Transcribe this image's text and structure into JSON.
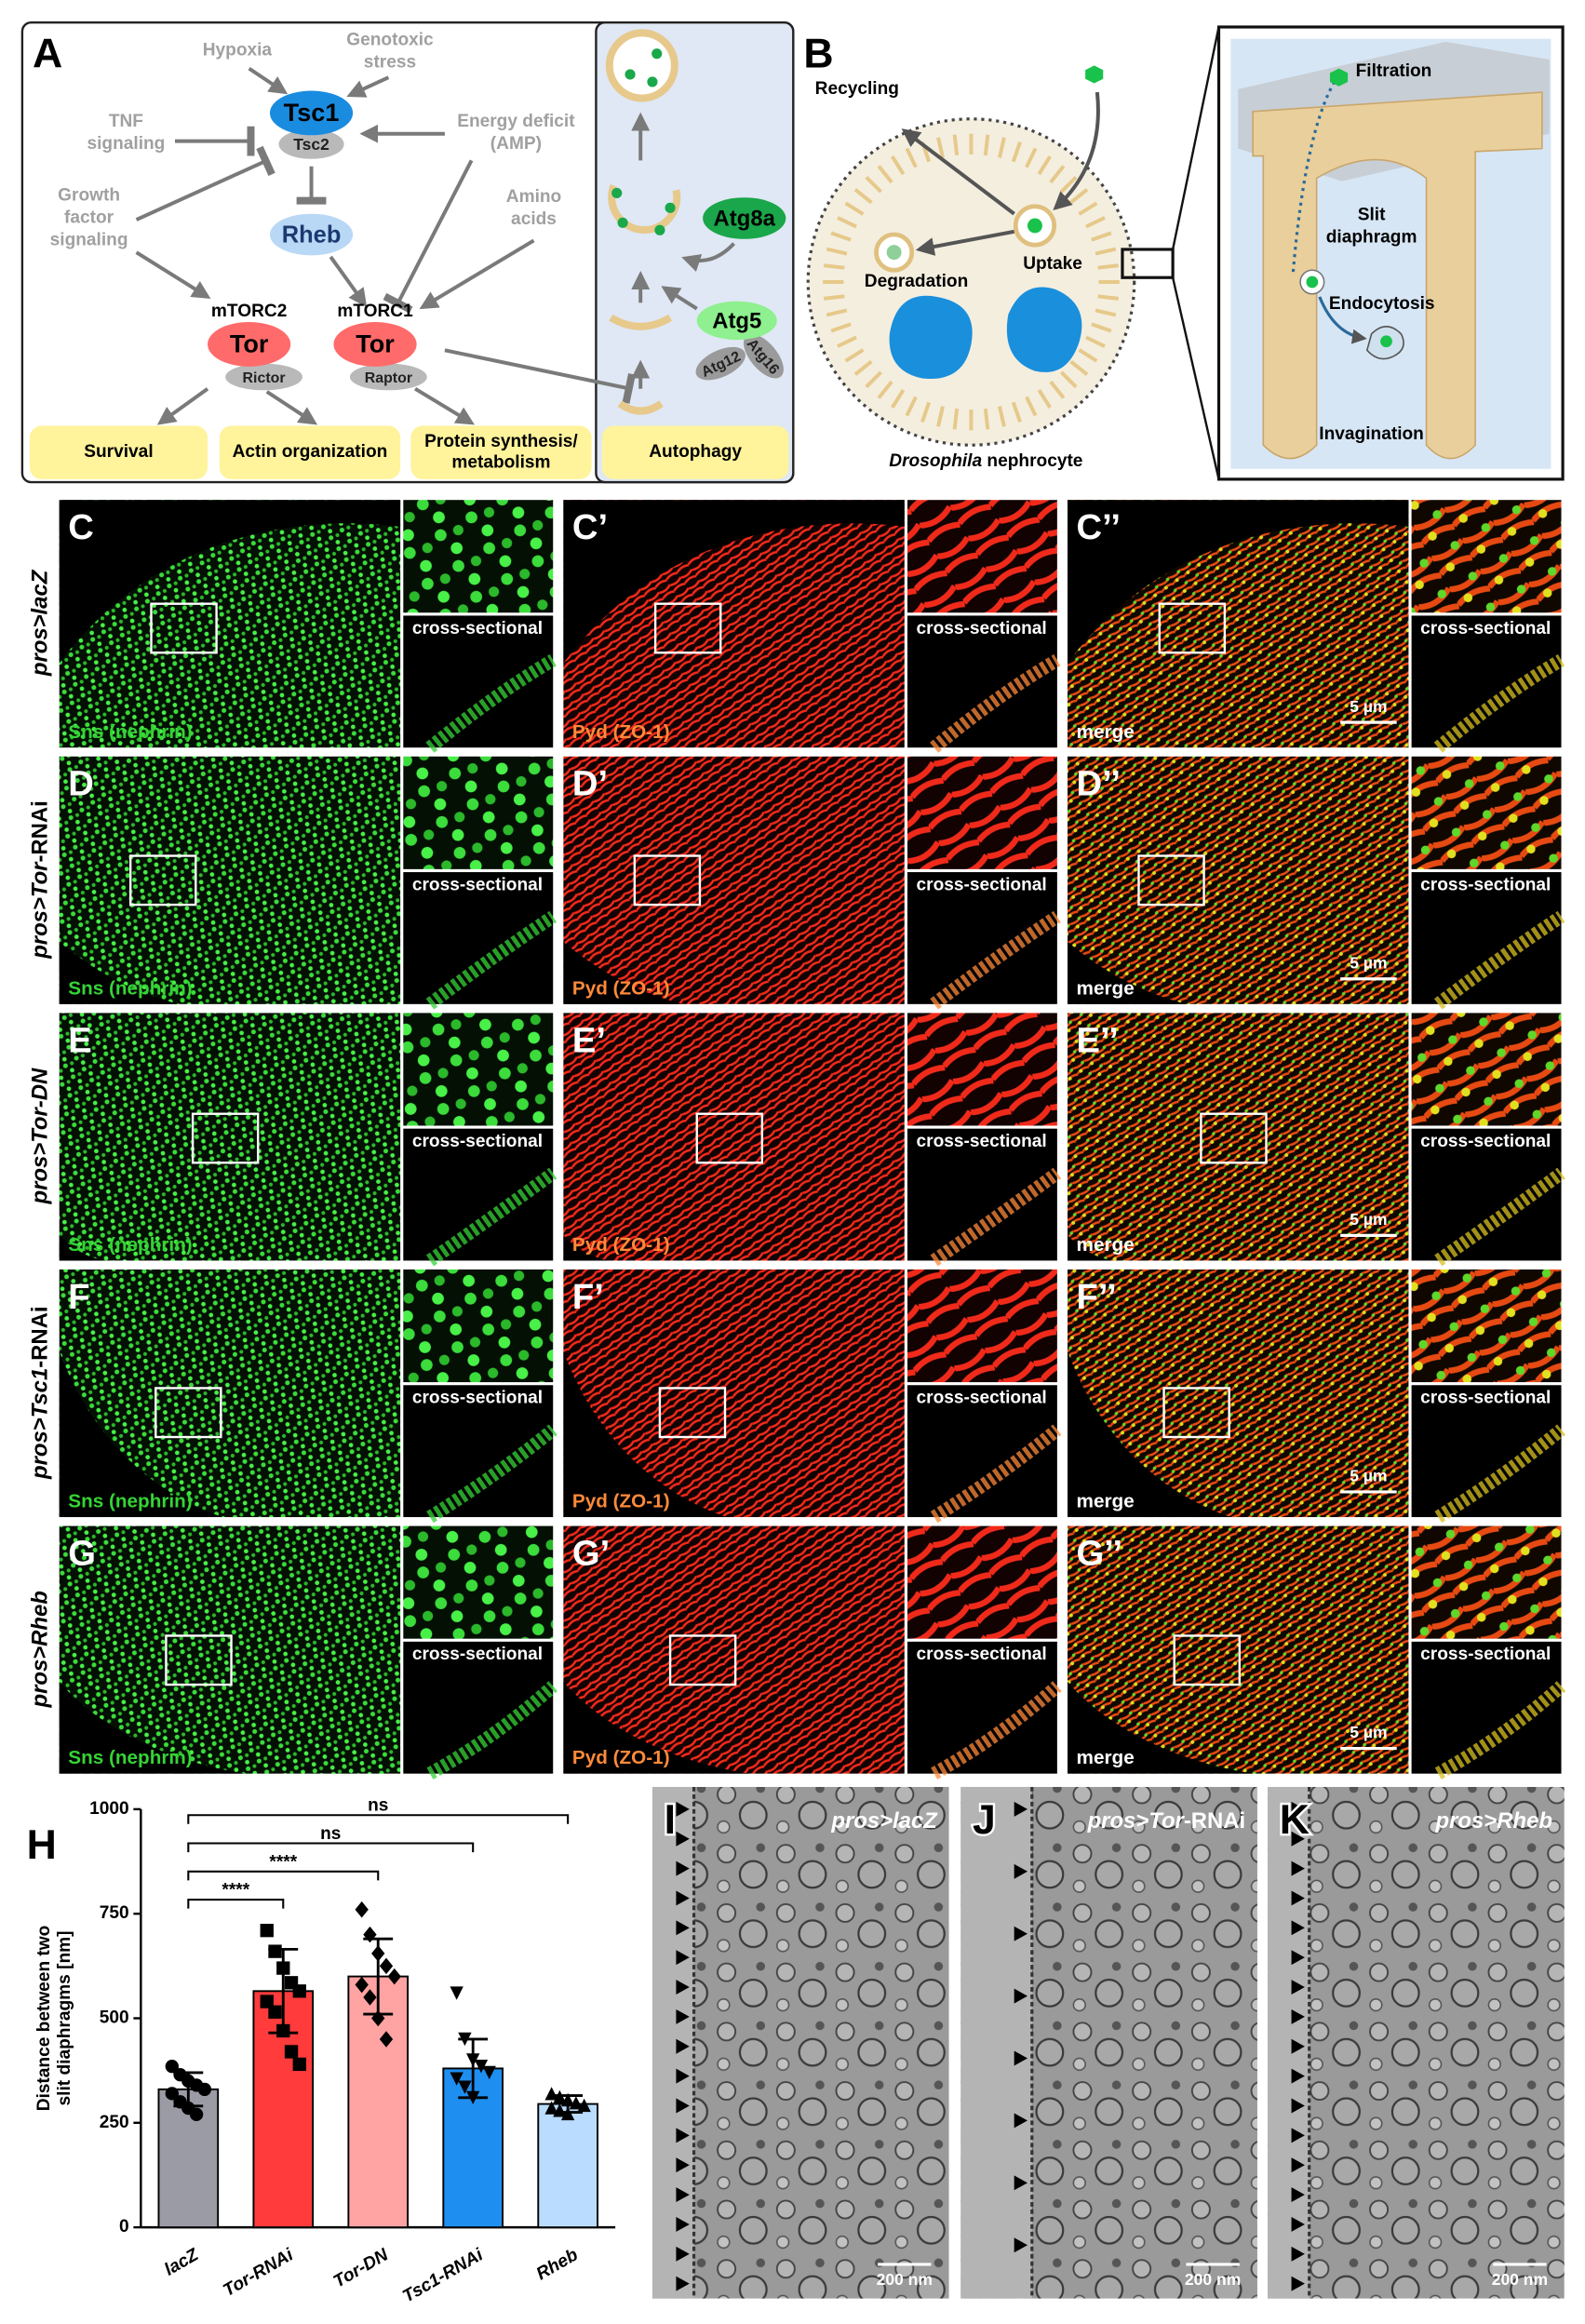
{
  "panel_a": {
    "letter": "A",
    "stimuli": {
      "hypoxia": [
        "Hypoxia"
      ],
      "genotoxic": [
        "Genotoxic",
        "stress"
      ],
      "tnf": [
        "TNF",
        "signaling"
      ],
      "energy": [
        "Energy deficit",
        "(AMP)"
      ],
      "growth": [
        "Growth",
        "factor",
        "signaling"
      ],
      "amino": [
        "Amino",
        "acids"
      ]
    },
    "tsc1": "Tsc1",
    "tsc2": "Tsc2",
    "rheb": "Rheb",
    "mtorc2": "mTORC2",
    "mtorc1": "mTORC1",
    "tor": "Tor",
    "rictor": "Rictor",
    "raptor": "Raptor",
    "outputs": {
      "survival": [
        "Survival"
      ],
      "actin": [
        "Actin organization"
      ],
      "protein": [
        "Protein synthesis/",
        "metabolism"
      ],
      "autophagy": [
        "Autophagy"
      ]
    },
    "atg8a": "Atg8a",
    "atg5": "Atg5",
    "atg12": "Atg12",
    "atg16": "Atg16"
  },
  "panel_b": {
    "letter": "B",
    "recycling": "Recycling",
    "degradation": "Degradation",
    "uptake": "Uptake",
    "species": "Drosophila",
    "cell": "nephrocyte",
    "filtration": "Filtration",
    "slit": [
      "Slit",
      "diaphragm"
    ],
    "endocytosis": "Endocytosis",
    "invagination": "Invagination"
  },
  "imaging": {
    "channels": [
      {
        "label": "Sns (nephrin)",
        "color": "#35d435"
      },
      {
        "label": "Pyd (ZO-1)",
        "color": "#ff8a3a"
      },
      {
        "label": "merge",
        "color": "#ffffff"
      }
    ],
    "inset_label": "cross-sectional",
    "rows": [
      {
        "letters": [
          "C",
          "C’",
          "C’’"
        ],
        "genotype": {
          "italic": "pros>lacZ"
        },
        "scale_bar": "5 µm"
      },
      {
        "letters": [
          "D",
          "D’",
          "D’’"
        ],
        "genotype": {
          "italic": "pros>Tor",
          "plain": "-RNAi"
        },
        "scale_bar": "5 µm"
      },
      {
        "letters": [
          "E",
          "E’",
          "E’’"
        ],
        "genotype": {
          "italic": "pros>Tor-DN"
        },
        "scale_bar": "5 µm"
      },
      {
        "letters": [
          "F",
          "F’",
          "F’’"
        ],
        "genotype": {
          "italic": "pros>Tsc1",
          "plain": "-RNAi"
        },
        "scale_bar": "5 µm"
      },
      {
        "letters": [
          "G",
          "G’",
          "G’’"
        ],
        "genotype": {
          "italic": "pros>Rheb"
        },
        "scale_bar": "5 µm"
      }
    ]
  },
  "panel_h_label": "H",
  "chart_data": {
    "type": "bar",
    "categories": [
      "lacZ",
      "Tor-RNAi",
      "Tor-DN",
      "Tsc1-RNAi",
      "Rheb"
    ],
    "values": [
      330,
      565,
      600,
      380,
      295
    ],
    "errors": [
      40,
      100,
      90,
      70,
      20
    ],
    "colors": [
      "#9b9ba6",
      "#ff3b3b",
      "#ffa3a3",
      "#1e8ff0",
      "#b9dcff"
    ],
    "points": [
      [
        385,
        365,
        350,
        340,
        330,
        320,
        300,
        285,
        270
      ],
      [
        710,
        660,
        620,
        585,
        565,
        540,
        515,
        470,
        420,
        390
      ],
      [
        760,
        700,
        655,
        625,
        600,
        580,
        550,
        500,
        450
      ],
      [
        560,
        450,
        400,
        385,
        370,
        355,
        335,
        310
      ],
      [
        320,
        312,
        305,
        298,
        292,
        286,
        280,
        272
      ]
    ],
    "markers": [
      "circle",
      "square",
      "diamond",
      "triangle-down",
      "triangle-up"
    ],
    "ylim": [
      0,
      1000
    ],
    "yticks": [
      0,
      250,
      500,
      750,
      1000
    ],
    "ylabel": [
      "Distance between two",
      "slit diaphragms [nm]"
    ],
    "comparisons": [
      {
        "pair": [
          "lacZ",
          "Rheb"
        ],
        "label": "ns"
      },
      {
        "pair": [
          "lacZ",
          "Tsc1-RNAi"
        ],
        "label": "ns"
      },
      {
        "pair": [
          "lacZ",
          "Tor-DN"
        ],
        "label": "****"
      },
      {
        "pair": [
          "lacZ",
          "Tor-RNAi"
        ],
        "label": "****"
      }
    ]
  },
  "em": {
    "panels": [
      {
        "letter": "I",
        "genotype": {
          "italic": "pros>lacZ"
        },
        "scale_bar": "200 nm"
      },
      {
        "letter": "J",
        "genotype": {
          "italic": "pros>Tor",
          "plain": "-RNAi"
        },
        "scale_bar": "200 nm"
      },
      {
        "letter": "K",
        "genotype": {
          "italic": "pros>Rheb"
        },
        "scale_bar": "200 nm"
      }
    ]
  }
}
